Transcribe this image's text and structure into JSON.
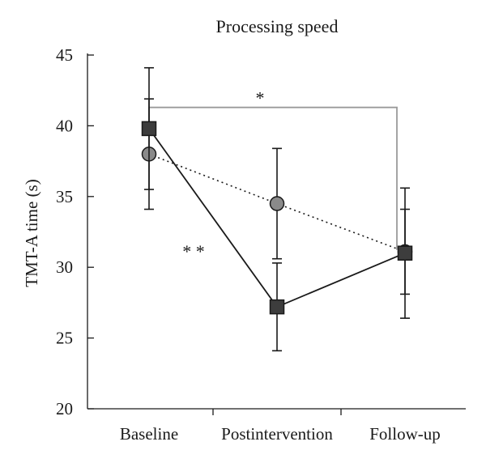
{
  "chart_data": {
    "type": "line",
    "title": "Processing speed",
    "xlabel": "",
    "ylabel": "TMT-A time (s)",
    "categories": [
      "Baseline",
      "Postintervention",
      "Follow-up"
    ],
    "ylim": [
      20,
      45
    ],
    "yticks": [
      20,
      25,
      30,
      35,
      40,
      45
    ],
    "grid": false,
    "series": [
      {
        "marker": "square",
        "line_style": "solid",
        "color": "#3d3d3d",
        "values": [
          39.8,
          27.2,
          31.0
        ],
        "error_low": [
          34.1,
          24.1,
          26.4
        ],
        "error_high": [
          44.1,
          30.3,
          35.6
        ]
      },
      {
        "marker": "circle",
        "line_style": "dotted",
        "color": "#8a8a8a",
        "values": [
          38.0,
          34.5,
          31.1
        ],
        "error_low": [
          35.5,
          30.6,
          28.1
        ],
        "error_high": [
          41.9,
          38.4,
          34.1
        ]
      }
    ],
    "annotations": [
      {
        "text": "*",
        "bracket": [
          "Baseline",
          "Follow-up"
        ]
      },
      {
        "text": "* *",
        "near": "Baseline–Postintervention segment"
      }
    ]
  }
}
